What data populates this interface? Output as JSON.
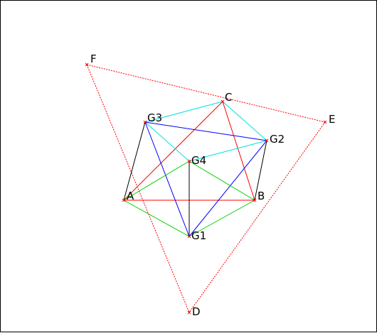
{
  "diagram": {
    "colors": {
      "red": "#ff0000",
      "cyan": "#00e0e0",
      "blue": "#0000ff",
      "green": "#00d000",
      "black": "#000000"
    },
    "points": [
      {
        "id": "A",
        "label": "A"
      },
      {
        "id": "B",
        "label": "B"
      },
      {
        "id": "C",
        "label": "C"
      },
      {
        "id": "D",
        "label": "D"
      },
      {
        "id": "E",
        "label": "E"
      },
      {
        "id": "F",
        "label": "F"
      },
      {
        "id": "G1",
        "label": "G1"
      },
      {
        "id": "G2",
        "label": "G2"
      },
      {
        "id": "G3",
        "label": "G3"
      },
      {
        "id": "G4",
        "label": "G4"
      }
    ],
    "segments": [
      {
        "from": "F",
        "to": "E",
        "color": "red",
        "style": "dashed"
      },
      {
        "from": "F",
        "to": "D",
        "color": "red",
        "style": "dashed"
      },
      {
        "from": "E",
        "to": "D",
        "color": "red",
        "style": "dashed"
      },
      {
        "from": "A",
        "to": "B",
        "color": "red",
        "style": "solid"
      },
      {
        "from": "A",
        "to": "C",
        "color": "red",
        "style": "solid"
      },
      {
        "from": "B",
        "to": "C",
        "color": "red",
        "style": "solid"
      },
      {
        "from": "G3",
        "to": "C",
        "color": "cyan",
        "style": "solid"
      },
      {
        "from": "C",
        "to": "G2",
        "color": "cyan",
        "style": "solid"
      },
      {
        "from": "G3",
        "to": "G4",
        "color": "cyan",
        "style": "solid"
      },
      {
        "from": "G4",
        "to": "G2",
        "color": "cyan",
        "style": "solid"
      },
      {
        "from": "G3",
        "to": "G2",
        "color": "blue",
        "style": "solid"
      },
      {
        "from": "G3",
        "to": "G1",
        "color": "blue",
        "style": "solid"
      },
      {
        "from": "G1",
        "to": "G2",
        "color": "blue",
        "style": "solid"
      },
      {
        "from": "A",
        "to": "G4",
        "color": "green",
        "style": "solid"
      },
      {
        "from": "G4",
        "to": "B",
        "color": "green",
        "style": "solid"
      },
      {
        "from": "A",
        "to": "G1",
        "color": "green",
        "style": "solid"
      },
      {
        "from": "G1",
        "to": "B",
        "color": "green",
        "style": "solid"
      },
      {
        "from": "A",
        "to": "G3",
        "color": "black",
        "style": "solid"
      },
      {
        "from": "B",
        "to": "G2",
        "color": "black",
        "style": "solid"
      },
      {
        "from": "G4",
        "to": "G1",
        "color": "black",
        "style": "solid"
      }
    ]
  }
}
